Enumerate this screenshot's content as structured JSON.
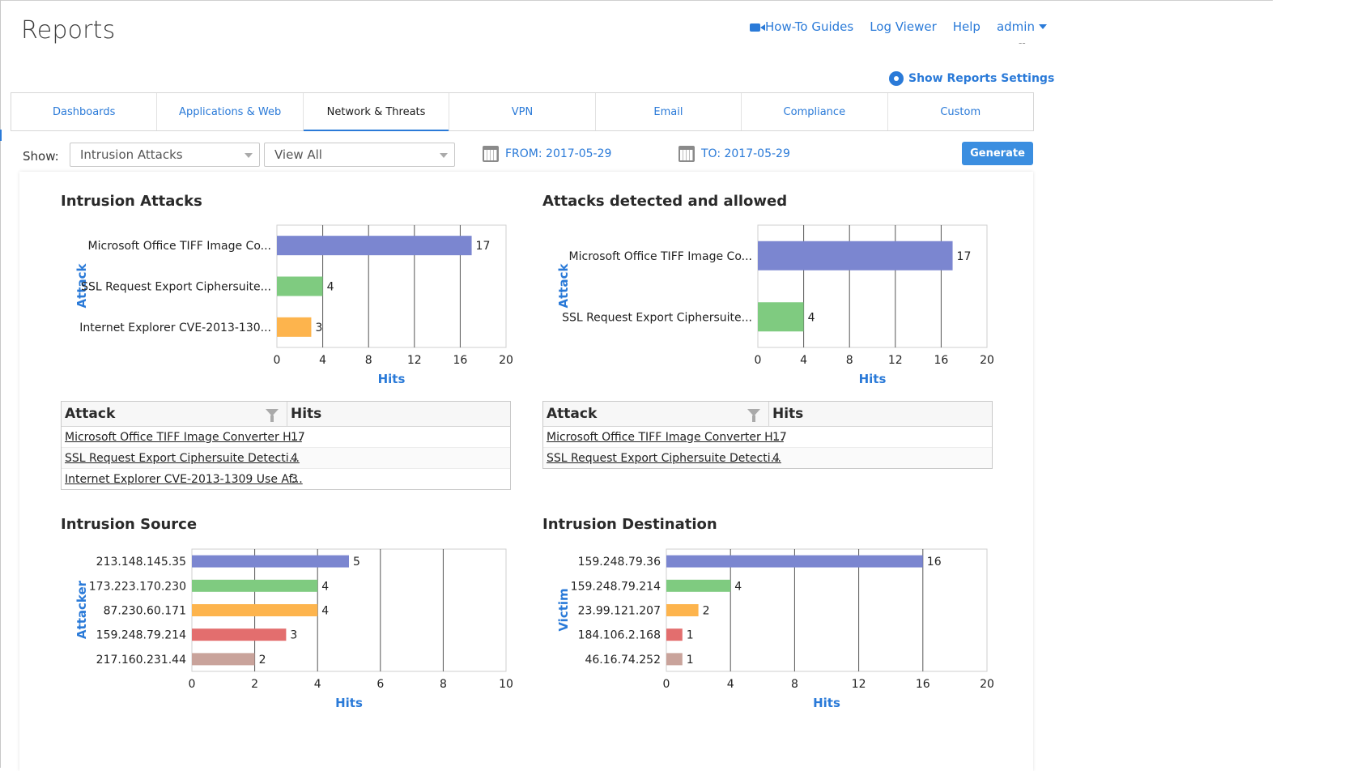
{
  "page": {
    "title": "Reports"
  },
  "topnav": {
    "howto": "How-To Guides",
    "logviewer": "Log Viewer",
    "help": "Help",
    "admin": "admin",
    "admin_sub": "--"
  },
  "settings": {
    "label": "Show Reports Settings"
  },
  "tabs": [
    {
      "label": "Dashboards"
    },
    {
      "label": "Applications & Web"
    },
    {
      "label": "Network & Threats"
    },
    {
      "label": "VPN"
    },
    {
      "label": "Email"
    },
    {
      "label": "Compliance"
    },
    {
      "label": "Custom"
    }
  ],
  "filters": {
    "show_label": "Show:",
    "report_select": "Intrusion Attacks",
    "view_select": "View All",
    "from": "FROM: 2017-05-29",
    "to": "TO: 2017-05-29",
    "generate": "Generate"
  },
  "colors": {
    "accent": "#2a7ad8",
    "bar1": "#7b86d0",
    "bar2": "#7fcb80",
    "bar3": "#fdb44d",
    "bar4": "#e36e6e",
    "bar5": "#c9a39b"
  },
  "tables": {
    "attacks": {
      "col1": "Attack",
      "col2": "Hits",
      "rows": [
        {
          "name": "Microsoft Office TIFF Image Converter H...",
          "hits": "17"
        },
        {
          "name": "SSL Request Export Ciphersuite Detecti...",
          "hits": "4"
        },
        {
          "name": "Internet Explorer CVE-2013-1309 Use Af...",
          "hits": "3"
        }
      ]
    },
    "allowed": {
      "col1": "Attack",
      "col2": "Hits",
      "rows": [
        {
          "name": "Microsoft Office TIFF Image Converter H...",
          "hits": "17"
        },
        {
          "name": "SSL Request Export Ciphersuite Detecti...",
          "hits": "4"
        }
      ]
    }
  },
  "chart_data": [
    {
      "type": "bar",
      "orientation": "horizontal",
      "title": "Intrusion Attacks",
      "xlabel": "Hits",
      "ylabel": "Attack",
      "categories": [
        "Microsoft Office TIFF Image Co...",
        "SSL Request Export Ciphersuite...",
        "Internet Explorer CVE-2013-130..."
      ],
      "values": [
        17,
        4,
        3
      ],
      "xlim": [
        0,
        20
      ],
      "ticks": [
        0,
        4,
        8,
        12,
        16,
        20
      ],
      "grid": true
    },
    {
      "type": "bar",
      "orientation": "horizontal",
      "title": "Attacks detected and allowed",
      "xlabel": "Hits",
      "ylabel": "Attack",
      "categories": [
        "Microsoft Office TIFF Image Co...",
        "SSL Request Export Ciphersuite..."
      ],
      "values": [
        17,
        4
      ],
      "xlim": [
        0,
        20
      ],
      "ticks": [
        0,
        4,
        8,
        12,
        16,
        20
      ],
      "grid": true
    },
    {
      "type": "bar",
      "orientation": "horizontal",
      "title": "Intrusion Source",
      "xlabel": "Hits",
      "ylabel": "Attacker",
      "categories": [
        "213.148.145.35",
        "173.223.170.230",
        "87.230.60.171",
        "159.248.79.214",
        "217.160.231.44"
      ],
      "values": [
        5,
        4,
        4,
        3,
        2
      ],
      "xlim": [
        0,
        10
      ],
      "ticks": [
        0,
        2,
        4,
        6,
        8,
        10
      ],
      "grid": true
    },
    {
      "type": "bar",
      "orientation": "horizontal",
      "title": "Intrusion Destination",
      "xlabel": "Hits",
      "ylabel": "Victim",
      "categories": [
        "159.248.79.36",
        "159.248.79.214",
        "23.99.121.207",
        "184.106.2.168",
        "46.16.74.252"
      ],
      "values": [
        16,
        4,
        2,
        1,
        1
      ],
      "xlim": [
        0,
        20
      ],
      "ticks": [
        0,
        4,
        8,
        12,
        16,
        20
      ],
      "grid": true
    }
  ]
}
